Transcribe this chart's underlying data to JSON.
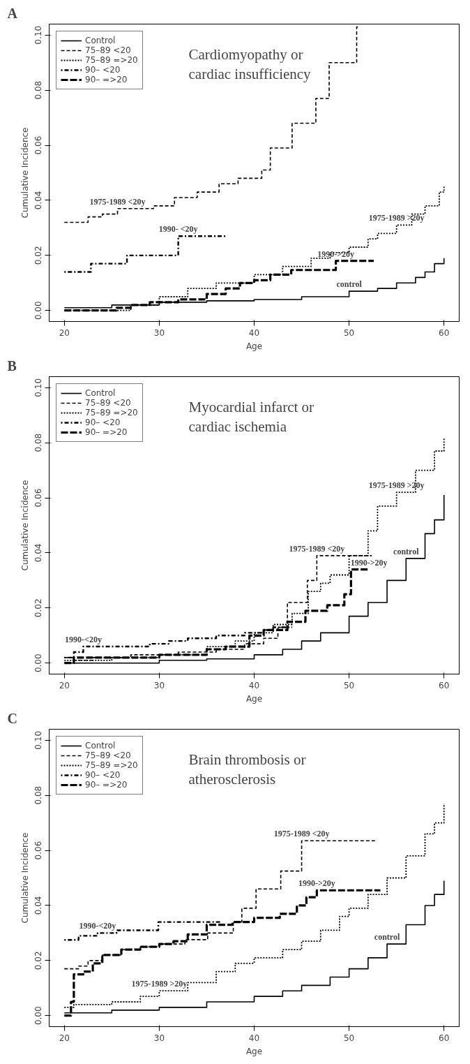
{
  "chart_data": [
    {
      "type": "step",
      "title": "Cardiomyopathy or\ncardiac insufficiency",
      "xlabel": "Age",
      "ylabel": "Cumulative Incidence",
      "xlim": [
        18.4,
        61.6
      ],
      "ylim": [
        -0.004,
        0.104
      ],
      "xticks": [
        20,
        30,
        40,
        50,
        60
      ],
      "yticks": [
        {
          "value": 0,
          "label": "0.00"
        },
        {
          "value": 0.02,
          "label": "0.02"
        },
        {
          "value": 0.04,
          "label": "0.04"
        },
        {
          "value": 0.06,
          "label": "0.06"
        },
        {
          "value": 0.08,
          "label": "0.08"
        },
        {
          "value": 0.1,
          "label": "0.10"
        }
      ],
      "legend": "top left",
      "grid": false,
      "annotations": [
        "A",
        {
          "text": "1975-1989 <20y",
          "x": 25.6,
          "y": 0.037
        },
        {
          "text": "1990- <20y",
          "x": 32,
          "y": 0.027
        },
        {
          "text": "1975-1989 >20y",
          "x": 55,
          "y": 0.031
        },
        {
          "text": "1990->20y",
          "x": 48.6,
          "y": 0.018
        },
        {
          "text": "control",
          "x": 50,
          "y": 0.007
        }
      ],
      "series": [
        {
          "name": "Control",
          "color": "#000000",
          "line_style": "solid",
          "x": [
            20,
            25,
            30,
            35,
            40,
            45,
            50,
            53,
            55,
            57,
            58,
            59,
            60
          ],
          "values": [
            0.001,
            0.002,
            0.003,
            0.0035,
            0.004,
            0.005,
            0.007,
            0.008,
            0.01,
            0.012,
            0.014,
            0.017,
            0.019
          ]
        },
        {
          "name": "75–89 <20",
          "color": "#000000",
          "line_style": "dashed",
          "x": [
            20,
            22.5,
            24,
            25.6,
            29.4,
            31.6,
            34,
            36.3,
            38.3,
            40.8,
            41.7,
            44,
            46.5,
            47.9,
            50.8,
            51
          ],
          "values": [
            0.032,
            0.034,
            0.035,
            0.037,
            0.038,
            0.041,
            0.043,
            0.046,
            0.048,
            0.051,
            0.059,
            0.068,
            0.077,
            0.09,
            0.103,
            0.103
          ]
        },
        {
          "name": "75–89 =>20",
          "color": "#000000",
          "line_style": "dotted",
          "x": [
            20,
            25.5,
            27,
            30,
            33,
            36,
            40,
            43,
            46,
            48,
            50,
            52,
            53,
            55,
            56.6,
            58,
            59.5,
            60
          ],
          "values": [
            0,
            0,
            0.002,
            0.005,
            0.008,
            0.01,
            0.013,
            0.016,
            0.019,
            0.021,
            0.023,
            0.026,
            0.028,
            0.031,
            0.035,
            0.038,
            0.043,
            0.045
          ]
        },
        {
          "name": "90– <20",
          "color": "#000000",
          "line_style": "dashdot",
          "x": [
            20,
            22.8,
            26.6,
            32,
            37.1
          ],
          "values": [
            0.014,
            0.017,
            0.02,
            0.027,
            0.027
          ]
        },
        {
          "name": "90– =>20",
          "color": "#000000",
          "line_style": "longdash",
          "x": [
            20,
            25.5,
            27,
            29,
            32,
            35,
            37,
            38.5,
            40,
            41.7,
            43.9,
            48.6,
            52.6
          ],
          "values": [
            0,
            0.001,
            0.002,
            0.003,
            0.004,
            0.006,
            0.008,
            0.01,
            0.011,
            0.013,
            0.0147,
            0.018,
            0.018
          ]
        }
      ]
    },
    {
      "type": "step",
      "title": "Myocardial infarct or\ncardiac ischemia",
      "xlabel": "Age",
      "ylabel": "Cumulative Incidence",
      "xlim": [
        18.4,
        61.6
      ],
      "ylim": [
        -0.004,
        0.104
      ],
      "xticks": [
        20,
        30,
        40,
        50,
        60
      ],
      "yticks": [
        {
          "value": 0,
          "label": "0.00"
        },
        {
          "value": 0.02,
          "label": "0.02"
        },
        {
          "value": 0.04,
          "label": "0.04"
        },
        {
          "value": 0.06,
          "label": "0.06"
        },
        {
          "value": 0.08,
          "label": "0.08"
        },
        {
          "value": 0.1,
          "label": "0.10"
        }
      ],
      "legend": "top left",
      "grid": false,
      "annotations": [
        "B",
        {
          "text": "1975-1989 >20y",
          "x": 55,
          "y": 0.062
        },
        {
          "text": "1975-1989 <20y",
          "x": 46.6,
          "y": 0.039
        },
        {
          "text": "control",
          "x": 56,
          "y": 0.038
        },
        {
          "text": "1990->20y",
          "x": 52.1,
          "y": 0.034
        },
        {
          "text": "1990-<20y",
          "x": 22,
          "y": 0.006
        }
      ],
      "series": [
        {
          "name": "Control",
          "color": "#000000",
          "line_style": "solid",
          "x": [
            20,
            30,
            35,
            40,
            43,
            45,
            47,
            50,
            52,
            54,
            56,
            58,
            59,
            60
          ],
          "values": [
            0,
            0.001,
            0.0015,
            0.003,
            0.005,
            0.008,
            0.011,
            0.017,
            0.022,
            0.03,
            0.038,
            0.047,
            0.052,
            0.061
          ]
        },
        {
          "name": "75–89 <20",
          "color": "#000000",
          "line_style": "dashed",
          "x": [
            20,
            21,
            23,
            27,
            32,
            36,
            39,
            41,
            42.5,
            43.5,
            45.6,
            46.6,
            52.4
          ],
          "values": [
            0.002,
            0.001,
            0.002,
            0.003,
            0.004,
            0.005,
            0.007,
            0.009,
            0.013,
            0.022,
            0.03,
            0.039,
            0.039
          ]
        },
        {
          "name": "75–89 =>20",
          "color": "#000000",
          "line_style": "dotted",
          "x": [
            20,
            25,
            30,
            35,
            38,
            40,
            42,
            44,
            45.7,
            47,
            48,
            50,
            52,
            53,
            55,
            57,
            59,
            60
          ],
          "values": [
            0.001,
            0.002,
            0.003,
            0.006,
            0.008,
            0.011,
            0.014,
            0.018,
            0.026,
            0.029,
            0.032,
            0.039,
            0.048,
            0.057,
            0.062,
            0.07,
            0.077,
            0.082
          ]
        },
        {
          "name": "90– <20",
          "color": "#000000",
          "line_style": "dashdot",
          "x": [
            20,
            21,
            22,
            25,
            29,
            31,
            33,
            36,
            39,
            41,
            42,
            44
          ],
          "values": [
            0.002,
            0.004,
            0.006,
            0.006,
            0.007,
            0.008,
            0.009,
            0.01,
            0.011,
            0.012,
            0.013,
            0.013
          ]
        },
        {
          "name": "90– =>20",
          "color": "#000000",
          "line_style": "longdash",
          "x": [
            20,
            21,
            24,
            30,
            35,
            37,
            39.5,
            41,
            43.5,
            45.4,
            47.7,
            49.5,
            50.2,
            52.1
          ],
          "values": [
            0,
            0.002,
            0.002,
            0.003,
            0.005,
            0.006,
            0.01,
            0.012,
            0.015,
            0.019,
            0.021,
            0.025,
            0.034,
            0.034
          ]
        }
      ]
    },
    {
      "type": "step",
      "title": "Brain thrombosis or\natherosclerosis",
      "xlabel": "Age",
      "ylabel": "Cumulative Incidence",
      "xlim": [
        18.4,
        61.6
      ],
      "ylim": [
        -0.004,
        0.104
      ],
      "xticks": [
        20,
        30,
        40,
        50,
        60
      ],
      "yticks": [
        {
          "value": 0,
          "label": "0.00"
        },
        {
          "value": 0.02,
          "label": "0.02"
        },
        {
          "value": 0.04,
          "label": "0.04"
        },
        {
          "value": 0.06,
          "label": "0.06"
        },
        {
          "value": 0.08,
          "label": "0.08"
        },
        {
          "value": 0.1,
          "label": "0.10"
        }
      ],
      "legend": "top left",
      "grid": false,
      "annotations": [
        "C",
        {
          "text": "1975-1989 <20y",
          "x": 45,
          "y": 0.0635
        },
        {
          "text": "1990->20y",
          "x": 46.6,
          "y": 0.0455
        },
        {
          "text": "1990-<20y",
          "x": 23.5,
          "y": 0.03
        },
        {
          "text": "1975-1989 >20y",
          "x": 30,
          "y": 0.009
        },
        {
          "text": "control",
          "x": 54,
          "y": 0.026
        }
      ],
      "series": [
        {
          "name": "Control",
          "color": "#000000",
          "line_style": "solid",
          "x": [
            20,
            25,
            30,
            35,
            40,
            43,
            45,
            48,
            50,
            52,
            54,
            56,
            58,
            59,
            60
          ],
          "values": [
            0.001,
            0.002,
            0.003,
            0.005,
            0.007,
            0.009,
            0.011,
            0.014,
            0.017,
            0.021,
            0.026,
            0.033,
            0.04,
            0.044,
            0.049
          ]
        },
        {
          "name": "75–89 <20",
          "color": "#000000",
          "line_style": "dashed",
          "x": [
            20,
            21.5,
            22.5,
            24,
            26,
            28,
            30,
            32.7,
            35.1,
            37.8,
            38.7,
            40.2,
            42.8,
            45,
            52.8
          ],
          "values": [
            0.017,
            0.018,
            0.02,
            0.022,
            0.024,
            0.025,
            0.026,
            0.0276,
            0.03,
            0.034,
            0.039,
            0.046,
            0.0525,
            0.0635,
            0.0635
          ]
        },
        {
          "name": "75–89 =>20",
          "color": "#000000",
          "line_style": "dotted",
          "x": [
            20,
            21,
            25,
            28,
            30,
            33,
            36,
            38,
            40,
            43,
            45,
            47,
            49,
            50,
            52,
            54,
            56,
            58,
            59,
            60
          ],
          "values": [
            0.003,
            0.004,
            0.005,
            0.007,
            0.009,
            0.012,
            0.016,
            0.019,
            0.021,
            0.024,
            0.027,
            0.031,
            0.036,
            0.039,
            0.044,
            0.05,
            0.058,
            0.066,
            0.07,
            0.077
          ]
        },
        {
          "name": "90– <20",
          "color": "#000000",
          "line_style": "dashdot",
          "x": [
            20,
            21.5,
            23.5,
            25.5,
            29.9,
            36.5
          ],
          "values": [
            0.0275,
            0.029,
            0.03,
            0.031,
            0.034,
            0.034
          ]
        },
        {
          "name": "90– =>20",
          "color": "#000000",
          "line_style": "longdash",
          "x": [
            20,
            20.7,
            21,
            22,
            23,
            24,
            26,
            28,
            30,
            31.5,
            33,
            35,
            37.7,
            40,
            42.7,
            44.5,
            45.5,
            46.6,
            53.3
          ],
          "values": [
            0,
            0.005,
            0.015,
            0.016,
            0.019,
            0.022,
            0.024,
            0.025,
            0.026,
            0.027,
            0.0295,
            0.033,
            0.034,
            0.0355,
            0.037,
            0.04,
            0.043,
            0.0455,
            0.0455
          ]
        }
      ]
    }
  ]
}
